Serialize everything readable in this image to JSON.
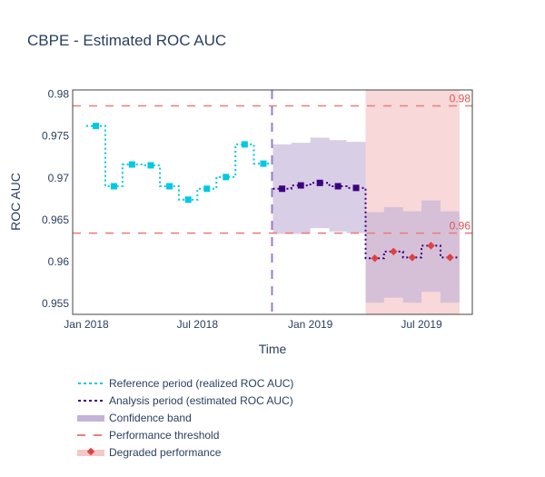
{
  "chart_data": {
    "type": "line",
    "title": "CBPE - Estimated ROC AUC",
    "xlabel": "Time",
    "ylabel": "ROC AUC",
    "ylim": [
      0.9537,
      0.9805
    ],
    "yticks": [
      0.955,
      0.96,
      0.965,
      0.97,
      0.975,
      0.98
    ],
    "ytick_labels": [
      "0.955",
      "0.96",
      "0.965",
      "0.97",
      "0.975",
      "0.98"
    ],
    "xticks": [
      "2018-01-01",
      "2018-07-01",
      "2019-01-01",
      "2019-07-01"
    ],
    "xtick_labels": [
      "Jan 2018",
      "Jul 2018",
      "Jan 2019",
      "Jul 2019"
    ],
    "grid": false,
    "legend_position": "bottom-left",
    "chunk_starts": [
      "2018-01-01",
      "2018-02-01",
      "2018-03-01",
      "2018-04-01",
      "2018-05-01",
      "2018-06-01",
      "2018-07-01",
      "2018-08-01",
      "2018-09-01",
      "2018-10-01",
      "2018-11-01",
      "2018-12-01",
      "2019-01-01",
      "2019-02-01",
      "2019-03-01",
      "2019-04-01",
      "2019-05-01",
      "2019-06-01",
      "2019-07-01",
      "2019-08-01",
      "2019-09-01",
      "2019-10-01"
    ],
    "series": [
      {
        "name": "Reference period (realized ROC AUC)",
        "color": "#00c8e5",
        "chunks": [
          0,
          1,
          2,
          3,
          4,
          5,
          6,
          7,
          8,
          9
        ],
        "values": [
          0.9762,
          0.969,
          0.9716,
          0.9715,
          0.969,
          0.9674,
          0.9687,
          0.9701,
          0.974,
          0.9717
        ]
      },
      {
        "name": "Analysis period (estimated ROC AUC)",
        "color": "#3b0280",
        "chunks": [
          10,
          11,
          12,
          13,
          14,
          15,
          16,
          17,
          18,
          19
        ],
        "values": [
          0.9687,
          0.9691,
          0.9694,
          0.969,
          0.9688,
          0.9604,
          0.9612,
          0.9605,
          0.9619,
          0.9605
        ],
        "degraded": [
          false,
          false,
          false,
          false,
          false,
          true,
          true,
          true,
          true,
          true
        ]
      }
    ],
    "confidence_band": {
      "name": "Confidence band",
      "color": "#c3b3d9",
      "chunks": [
        10,
        11,
        12,
        13,
        14,
        15,
        16,
        17,
        18,
        19
      ],
      "upper": [
        0.974,
        0.9742,
        0.9748,
        0.9745,
        0.9743,
        0.9659,
        0.9665,
        0.966,
        0.9673,
        0.966
      ],
      "lower": [
        0.9633,
        0.9633,
        0.964,
        0.9636,
        0.9634,
        0.9551,
        0.9557,
        0.9551,
        0.9564,
        0.9551
      ]
    },
    "thresholds": {
      "name": "Performance threshold",
      "color": "#e8807d",
      "upper": 0.9786,
      "lower": 0.9634,
      "upper_label": "0.98",
      "lower_label": "0.96"
    },
    "reference_analysis_split": "2018-11-01",
    "degraded_region": {
      "name": "Degraded performance",
      "color": "#f5c7c7",
      "marker_color": "#e0413e",
      "start_chunk": 15,
      "end_chunk": 19
    },
    "legend": [
      {
        "label": "Reference period (realized ROC AUC)",
        "icon": "cyan-dotted-line"
      },
      {
        "label": "Analysis period (estimated ROC AUC)",
        "icon": "indigo-dotted-line"
      },
      {
        "label": "Confidence band",
        "icon": "lavender-band"
      },
      {
        "label": "Performance threshold",
        "icon": "red-dashed-line"
      },
      {
        "label": "Degraded performance",
        "icon": "red-diamond-on-pink-band"
      }
    ]
  }
}
